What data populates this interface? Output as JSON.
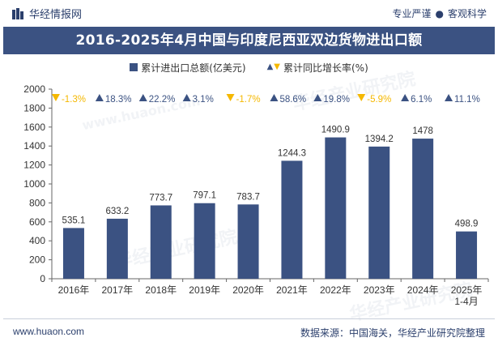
{
  "header": {
    "brand": "华经情报网",
    "tagline_left": "专业严谨",
    "tagline_sep": "●",
    "tagline_right": "客观科学"
  },
  "title": "2016-2025年4月中国与印度尼西亚双边货物进出口额",
  "legend": {
    "bar_label": "累计进出口总额(亿美元)",
    "growth_label": "累计同比增长率(%)"
  },
  "watermark": "华经产业研究院",
  "watermark_site": "www.huaon.com",
  "footer": {
    "site": "www.huaon.com",
    "source": "数据来源：中国海关，华经产业研究院整理"
  },
  "colors": {
    "bar": "#3b5282",
    "up": "#3b5282",
    "down": "#f5b800",
    "title_bg": "#3b5282"
  },
  "chart_data": {
    "type": "bar",
    "categories": [
      "2016年",
      "2017年",
      "2018年",
      "2019年",
      "2020年",
      "2021年",
      "2022年",
      "2023年",
      "2024年",
      "2025年1-4月"
    ],
    "category_lines": [
      [
        "2016年"
      ],
      [
        "2017年"
      ],
      [
        "2018年"
      ],
      [
        "2019年"
      ],
      [
        "2020年"
      ],
      [
        "2021年"
      ],
      [
        "2022年"
      ],
      [
        "2023年"
      ],
      [
        "2024年"
      ],
      [
        "2025年",
        "1-4月"
      ]
    ],
    "series": [
      {
        "name": "累计进出口总额(亿美元)",
        "values": [
          535.1,
          633.2,
          773.7,
          797.1,
          783.7,
          1244.3,
          1490.9,
          1394.2,
          1478,
          498.9
        ],
        "labels": [
          "535.1",
          "633.2",
          "773.7",
          "797.1",
          "783.7",
          "1244.3",
          "1490.9",
          "1394.2",
          "1478",
          "498.9"
        ]
      },
      {
        "name": "累计同比增长率(%)",
        "values": [
          -1.3,
          18.3,
          22.2,
          3.1,
          -1.7,
          58.6,
          19.8,
          -5.9,
          6.1,
          11.1
        ],
        "labels": [
          "-1.3%",
          "18.3%",
          "22.2%",
          "3.1%",
          "-1.7%",
          "58.6%",
          "19.8%",
          "-5.9%",
          "6.1%",
          "11.1%"
        ]
      }
    ],
    "ylim": [
      0,
      2000
    ],
    "yticks": [
      0,
      200,
      400,
      600,
      800,
      1000,
      1200,
      1400,
      1600,
      1800,
      2000
    ],
    "legend_position": "top",
    "grid": false
  }
}
